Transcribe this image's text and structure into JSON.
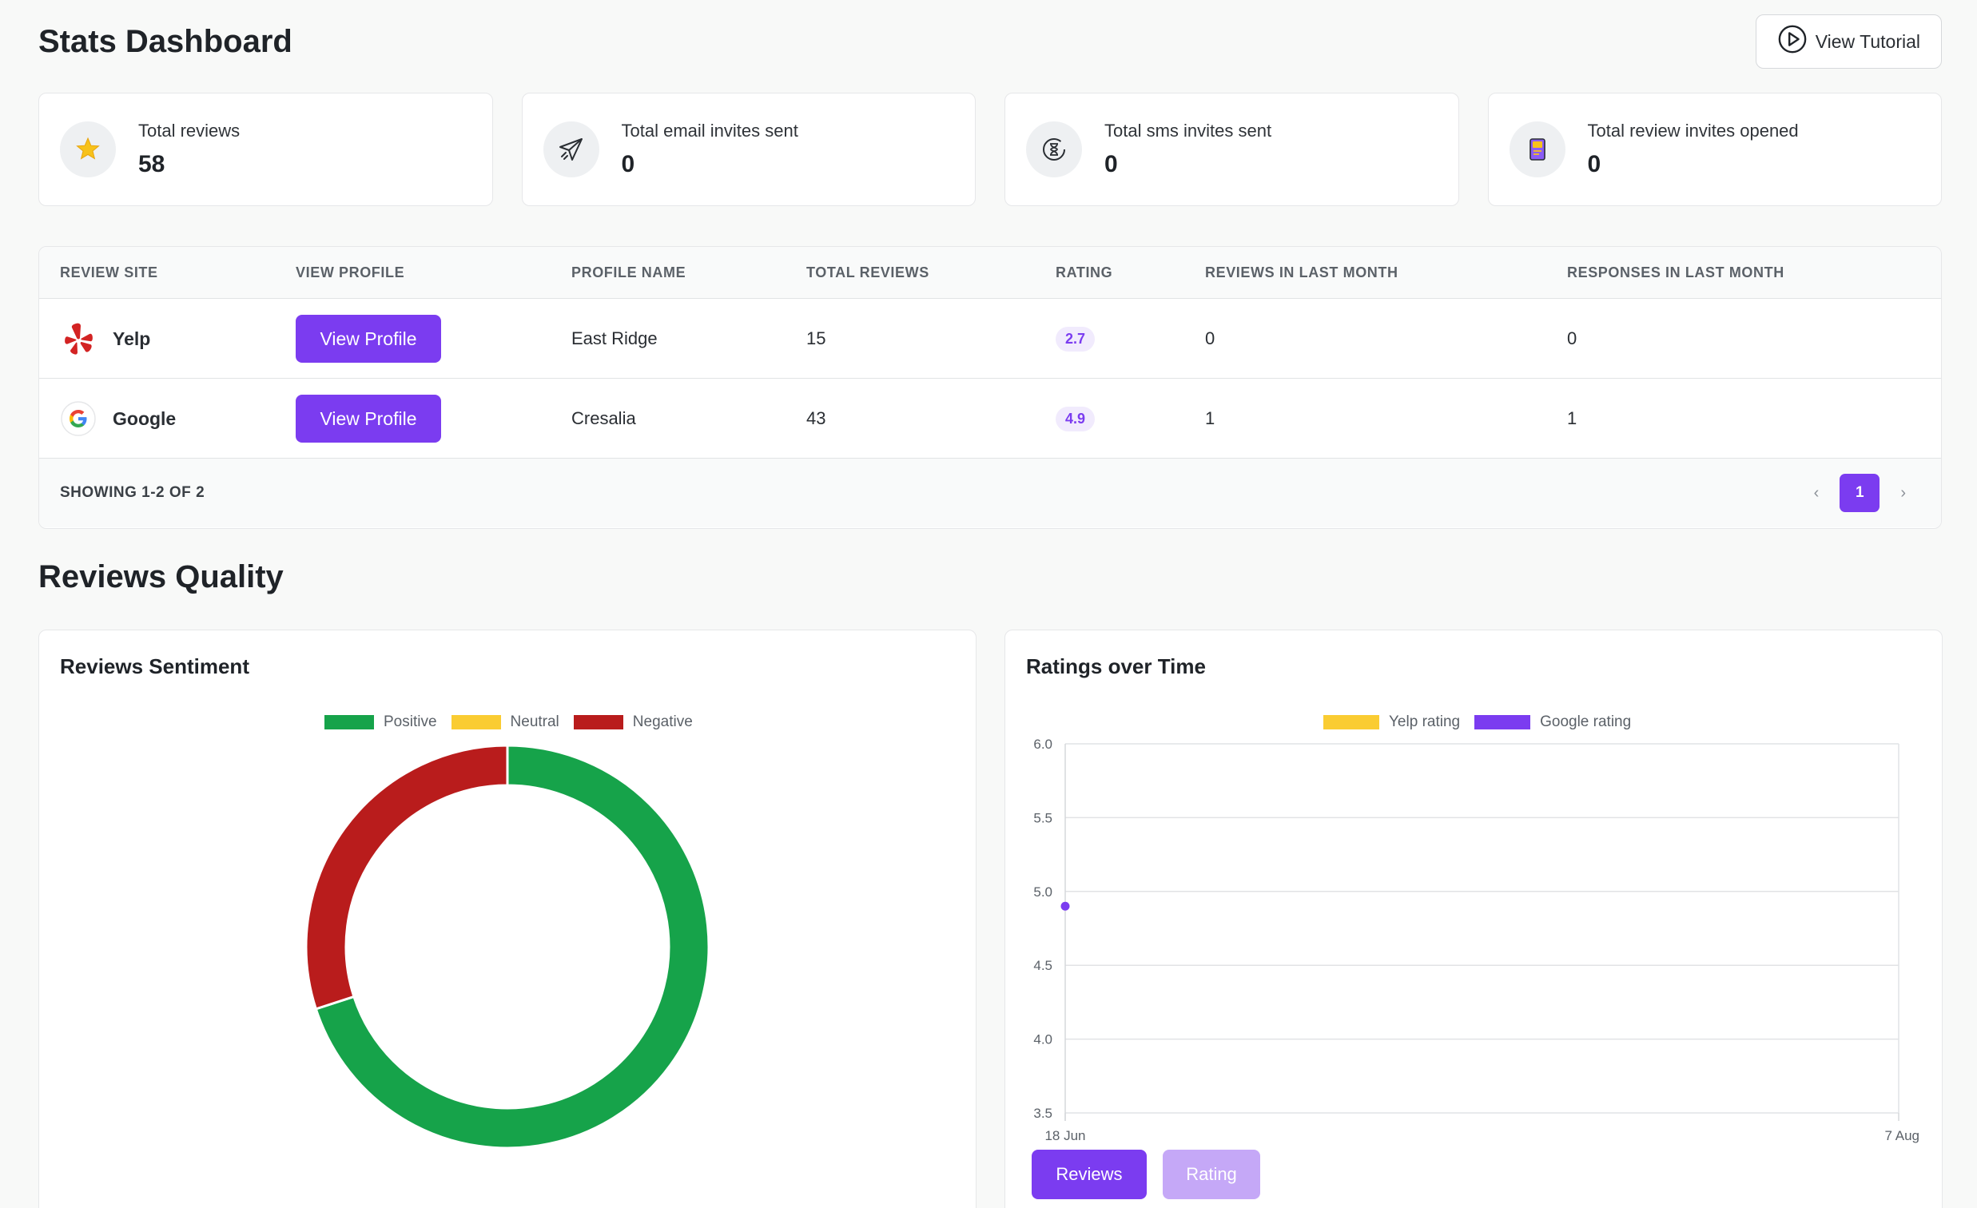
{
  "header": {
    "title": "Stats Dashboard",
    "tutorial_label": "View Tutorial"
  },
  "stats": [
    {
      "label": "Total reviews",
      "value": "58",
      "icon": "star-icon"
    },
    {
      "label": "Total email invites sent",
      "value": "0",
      "icon": "paper-plane-icon"
    },
    {
      "label": "Total sms invites sent",
      "value": "0",
      "icon": "hourglass-icon"
    },
    {
      "label": "Total review invites opened",
      "value": "0",
      "icon": "invite-card-icon"
    }
  ],
  "table": {
    "columns": [
      "REVIEW SITE",
      "VIEW PROFILE",
      "PROFILE NAME",
      "TOTAL REVIEWS",
      "RATING",
      "REVIEWS IN LAST MONTH",
      "RESPONSES IN LAST MONTH"
    ],
    "rows": [
      {
        "site": "Yelp",
        "logo": "yelp-logo-icon",
        "button": "View Profile",
        "profile_name": "East Ridge",
        "total_reviews": "15",
        "rating": "2.7",
        "reviews_last_month": "0",
        "responses_last_month": "0"
      },
      {
        "site": "Google",
        "logo": "google-logo-icon",
        "button": "View Profile",
        "profile_name": "Cresalia",
        "total_reviews": "43",
        "rating": "4.9",
        "reviews_last_month": "1",
        "responses_last_month": "1"
      }
    ],
    "showing": "SHOWING 1-2 OF 2",
    "pagination": {
      "prev": "‹",
      "current": "1",
      "next": "›"
    }
  },
  "section": {
    "title": "Reviews Quality"
  },
  "colors": {
    "accent": "#7b3cf0",
    "accent_light": "#c5a8f7",
    "positive": "#16a34a",
    "neutral": "#facc32",
    "negative": "#b91c1c",
    "yelp": "#d32323"
  },
  "chart_data": [
    {
      "type": "pie",
      "title": "Reviews Sentiment",
      "categories": [
        "Positive",
        "Neutral",
        "Negative"
      ],
      "values": [
        70,
        0,
        30
      ],
      "colors": [
        "#16a34a",
        "#facc32",
        "#b91c1c"
      ],
      "legend": "top"
    },
    {
      "type": "line",
      "title": "Ratings over Time",
      "x_tick_labels": [
        "18 Jun",
        "7 Aug"
      ],
      "series": [
        {
          "name": "Yelp rating",
          "color": "#facc32",
          "points": []
        },
        {
          "name": "Google rating",
          "color": "#7b3cf0",
          "points": [
            {
              "x": "18 Jun",
              "y": 4.9
            }
          ]
        }
      ],
      "ylim": [
        3.5,
        6.0
      ],
      "y_ticks": [
        "6.0",
        "5.5",
        "5.0",
        "4.5",
        "4.0",
        "3.5"
      ],
      "grid": true,
      "legend": "top",
      "toggles": {
        "reviews_label": "Reviews",
        "rating_label": "Rating"
      }
    }
  ]
}
